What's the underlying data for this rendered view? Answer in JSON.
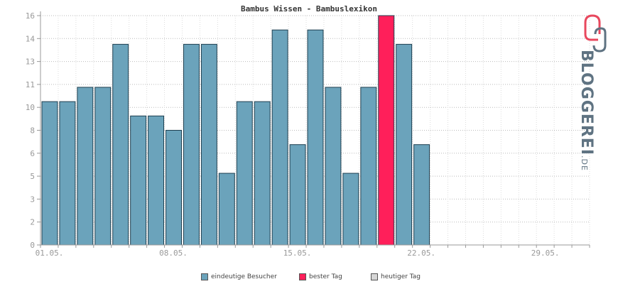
{
  "chart_data": {
    "type": "bar",
    "title": "Bambus Wissen - Bambuslexikon",
    "y_tick_labels": [
      "0",
      "2",
      "3",
      "5",
      "6",
      "8",
      "10",
      "11",
      "13",
      "14",
      "16"
    ],
    "y_tick_values": [
      0,
      1.6,
      3.2,
      4.8,
      6.4,
      8,
      9.6,
      11.2,
      12.8,
      14.4,
      16
    ],
    "ylim": [
      0,
      16
    ],
    "x_tick_labels": [
      "01.05.",
      "08.05.",
      "15.05.",
      "22.05.",
      "29.05."
    ],
    "x_tick_days": [
      1,
      8,
      15,
      22,
      29
    ],
    "days_in_month": 31,
    "series": [
      {
        "name": "eindeutige Besucher",
        "x": [
          1,
          2,
          3,
          4,
          5,
          6,
          7,
          8,
          9,
          10,
          11,
          12,
          13,
          14,
          15,
          16,
          17,
          18,
          19,
          20,
          21,
          22
        ],
        "values": [
          10,
          10,
          11,
          11,
          14,
          9,
          9,
          8,
          14,
          14,
          5,
          10,
          10,
          15,
          7,
          15,
          11,
          5,
          11,
          16,
          14,
          7
        ]
      }
    ],
    "best_day": 20,
    "grid": true,
    "legend_position": "bottom",
    "colors": {
      "bar": "#6ba3bb",
      "best": "#ff1f5a",
      "today": "#d6d6d6"
    }
  },
  "legend": [
    {
      "label": "eindeutige Besucher",
      "color": "#6ba3bb"
    },
    {
      "label": "bester Tag",
      "color": "#ff1f5a"
    },
    {
      "label": "heutiger Tag",
      "color": "#d6d6d6"
    }
  ],
  "logo": {
    "main": "BLOGGEREI",
    "suffix": ".DE",
    "colors": [
      "#e8485e",
      "#5f7382"
    ]
  }
}
